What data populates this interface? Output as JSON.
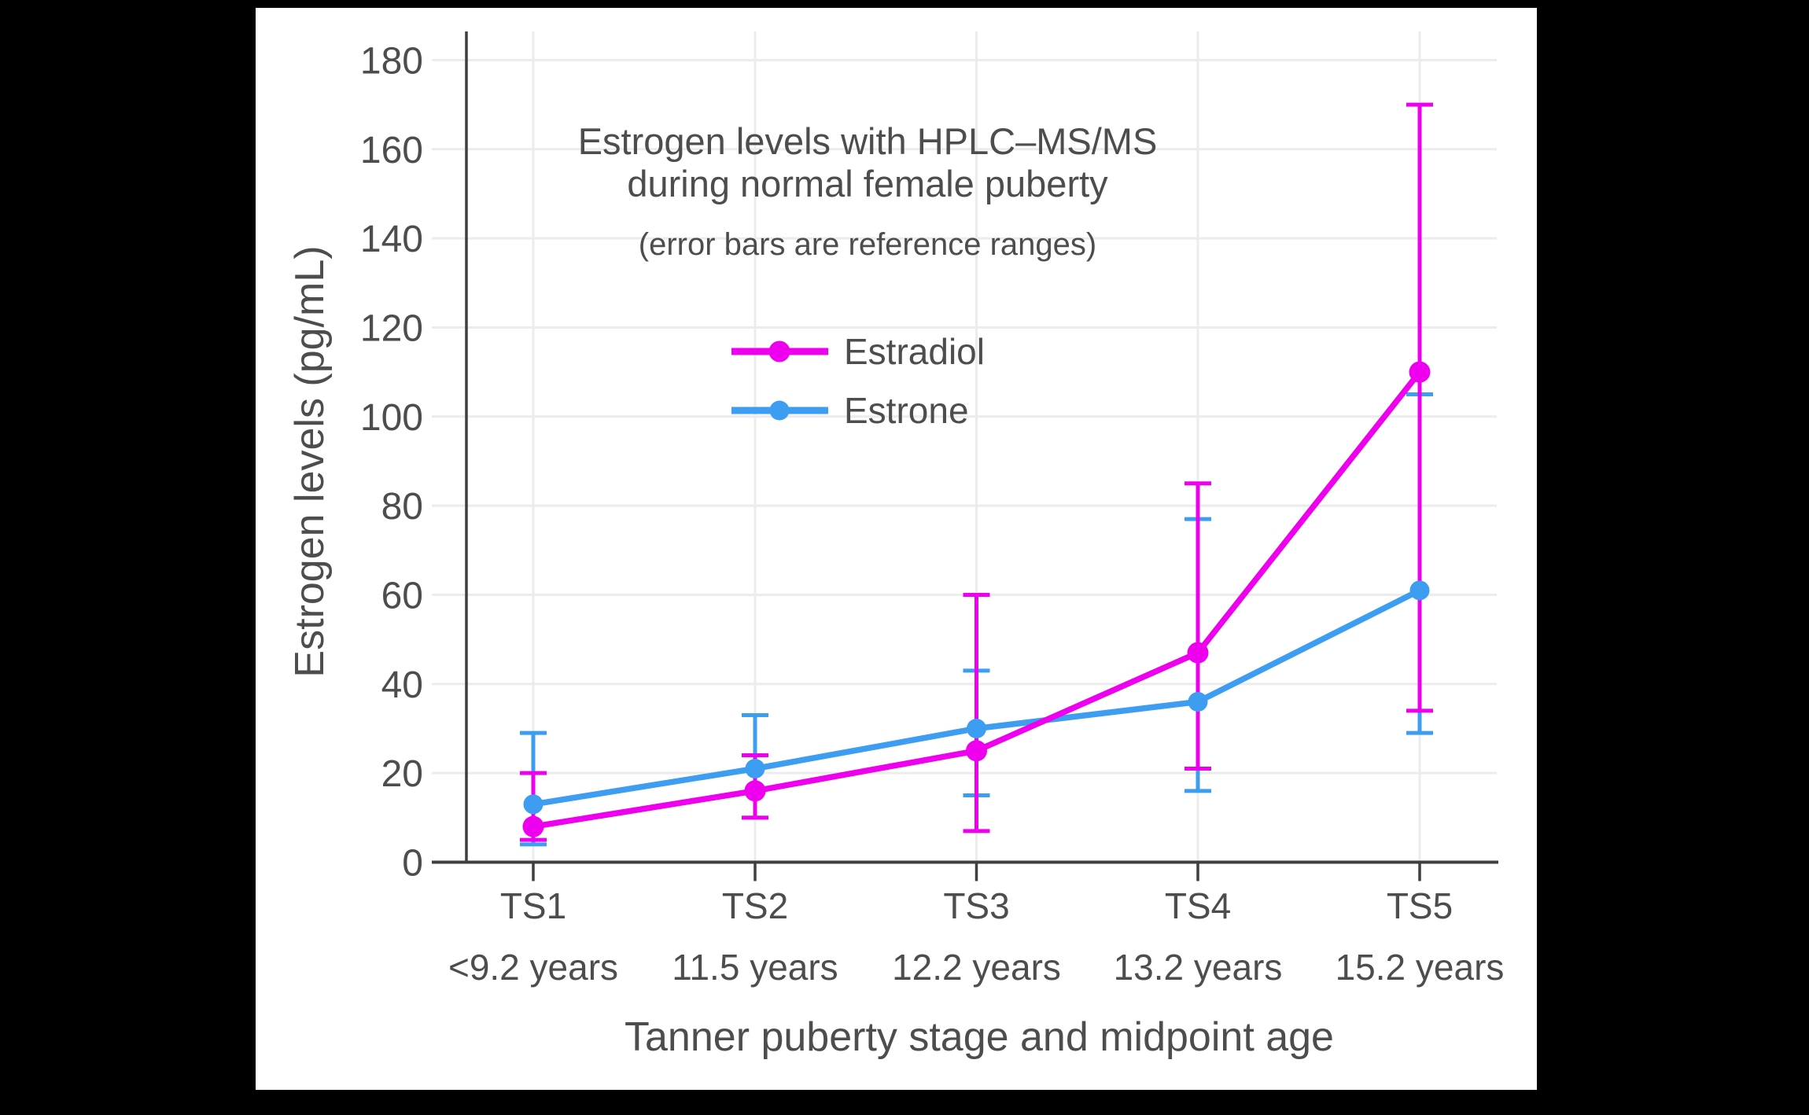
{
  "colors": {
    "page_background": "#000000",
    "panel_background": "#ffffff",
    "grid": "#ececec",
    "axis": "#3f3f3f",
    "text": "#4d4d4d",
    "estradiol": "#ee00ee",
    "estrone": "#3d9df0"
  },
  "chart_data": {
    "type": "line",
    "title": "Estrogen levels with HPLC–MS/MS during normal female puberty",
    "title_line1": "Estrogen levels with HPLC–MS/MS",
    "title_line2": "during normal female puberty",
    "subtitle": "(error bars are reference ranges)",
    "xlabel": "Tanner puberty stage and midpoint age",
    "ylabel": "Estrogen levels (pg/mL)",
    "categories": [
      "TS1",
      "TS2",
      "TS3",
      "TS4",
      "TS5"
    ],
    "category_sublabels": [
      "<9.2 years",
      "11.5 years",
      "12.2 years",
      "13.2 years",
      "15.2 years"
    ],
    "yticks": [
      0,
      20,
      40,
      60,
      80,
      100,
      120,
      140,
      160,
      180
    ],
    "ylim": [
      0,
      186
    ],
    "grid": true,
    "legend_position": "upper-left-inside",
    "error_bar_meaning": "reference ranges",
    "series": [
      {
        "name": "Estradiol",
        "color": "#ee00ee",
        "values": [
          8,
          16,
          25,
          47,
          110
        ],
        "error_low": [
          5,
          10,
          7,
          21,
          34
        ],
        "error_high": [
          20,
          24,
          60,
          85,
          170
        ]
      },
      {
        "name": "Estrone",
        "color": "#3d9df0",
        "values": [
          13,
          21,
          30,
          36,
          61
        ],
        "error_low": [
          4,
          10,
          15,
          16,
          29
        ],
        "error_high": [
          29,
          33,
          43,
          77,
          105
        ]
      }
    ]
  }
}
